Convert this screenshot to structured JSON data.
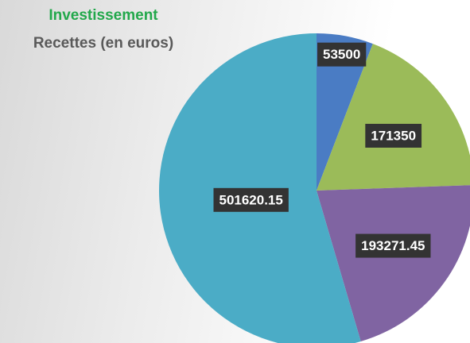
{
  "chart_data": {
    "type": "pie",
    "title": "Investissement",
    "subtitle": "Recettes (en euros)",
    "categories": [
      null,
      null,
      null,
      null
    ],
    "values": [
      53500,
      171350,
      193271.45,
      501620.15
    ],
    "colors": [
      "#4a7cc4",
      "#9bbb59",
      "#8064a2",
      "#4bacc6"
    ]
  }
}
